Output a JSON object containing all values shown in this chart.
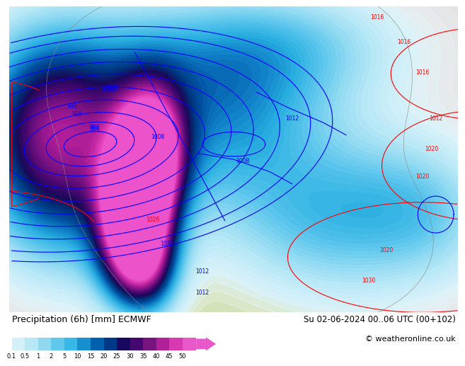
{
  "title_left": "Precipitation (6h) [mm] ECMWF",
  "title_right": "Su 02-06-2024 00..06 UTC (00+102)",
  "copyright": "© weatheronline.co.uk",
  "colorbar_labels": [
    "0.1",
    "0.5",
    "1",
    "2",
    "5",
    "10",
    "15",
    "20",
    "25",
    "30",
    "35",
    "40",
    "45",
    "50"
  ],
  "colorbar_colors": [
    "#d4f0f8",
    "#b8e8f5",
    "#90d8f0",
    "#60c8ec",
    "#38b8e8",
    "#1890d0",
    "#0060b0",
    "#003888",
    "#180860",
    "#440870",
    "#781480",
    "#b02098",
    "#d838b0",
    "#e858c8"
  ],
  "bg_color": "#ffffff",
  "ocean_bg": "#e8e8e8",
  "precip_light": "#c8ecf8",
  "text_color": "#000000",
  "font_size_title": 9,
  "font_size_copyright": 8
}
